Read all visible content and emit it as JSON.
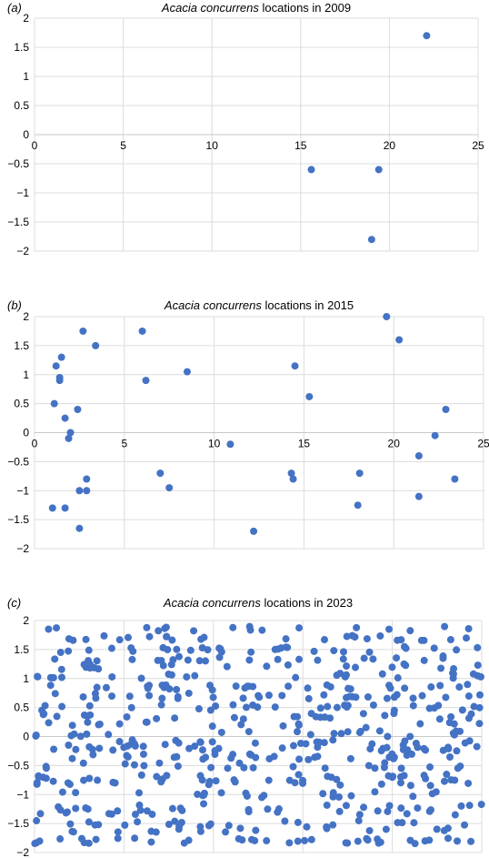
{
  "colors": {
    "marker": "#4472c4",
    "grid": "#dcdcdc"
  },
  "chart_data": [
    {
      "type": "scatter",
      "panel_label": "(a)",
      "title_species": "Acacia concurrens",
      "title_rest": " locations in 2009",
      "xlim": [
        0,
        25
      ],
      "ylim": [
        -2,
        2
      ],
      "x_ticks": [
        0,
        5,
        10,
        15,
        20,
        25
      ],
      "y_ticks": [
        2,
        1.5,
        1,
        0.5,
        0,
        -0.5,
        -1,
        -1.5,
        -2
      ],
      "grid": true,
      "series": [
        {
          "x": [
            15.6,
            19.4,
            22.1,
            19.0
          ],
          "y": [
            -0.6,
            -0.6,
            1.7,
            -1.8
          ]
        }
      ]
    },
    {
      "type": "scatter",
      "panel_label": "(b)",
      "title_species": "Acacia concurrens",
      "title_rest": " locations in 2015",
      "xlim": [
        0,
        25
      ],
      "ylim": [
        -2,
        2
      ],
      "x_ticks": [
        0,
        5,
        10,
        15,
        20,
        25
      ],
      "y_ticks": [
        2,
        1.5,
        1,
        0.5,
        0,
        -0.5,
        -1,
        -1.5,
        -2
      ],
      "grid": true,
      "series": [
        {
          "x": [
            1.1,
            1.2,
            1.4,
            1.4,
            1.5,
            1.7,
            1.9,
            2.0,
            2.4,
            2.7,
            3.4,
            6.0,
            6.2,
            8.5,
            14.5,
            15.3,
            19.6,
            20.3,
            22.9,
            1.0,
            1.7,
            2.5,
            2.9,
            2.5,
            2.9,
            7.0,
            7.5,
            10.9,
            12.2,
            14.3,
            14.4,
            18.0,
            18.1,
            21.4,
            21.4,
            22.3,
            23.4
          ],
          "y": [
            0.5,
            1.15,
            0.9,
            0.95,
            1.3,
            0.25,
            -0.1,
            0.0,
            0.4,
            1.75,
            1.5,
            1.75,
            0.9,
            1.05,
            1.15,
            0.62,
            2.0,
            1.6,
            0.4,
            -1.3,
            -1.3,
            -1.0,
            -1.0,
            -1.65,
            -0.8,
            -0.7,
            -0.95,
            -0.2,
            -1.7,
            -0.7,
            -0.8,
            -1.25,
            -0.7,
            -0.4,
            -1.1,
            -0.05,
            -0.8
          ]
        }
      ]
    },
    {
      "type": "scatter",
      "panel_label": "(c)",
      "title_species": "Acacia concurrens",
      "title_rest": " locations in 2023",
      "xlim": [
        0,
        25
      ],
      "ylim": [
        -2,
        2
      ],
      "x_ticks": [],
      "y_ticks": [
        2,
        1.5,
        1,
        0.5,
        0,
        -0.5,
        -1,
        -1.5,
        -2
      ],
      "grid": true,
      "series": [
        {
          "n_points": 600,
          "x_range": [
            0,
            25
          ],
          "y_levels": [
            -1.8,
            -1.6,
            -1.5,
            -1.3,
            -1.2,
            -1.0,
            -0.8,
            -0.7,
            -0.5,
            -0.35,
            -0.2,
            -0.1,
            0.05,
            0.2,
            0.35,
            0.5,
            0.7,
            0.85,
            1.05,
            1.2,
            1.35,
            1.5,
            1.7,
            1.85
          ],
          "y_range": [
            -1.95,
            1.95
          ]
        }
      ]
    }
  ]
}
